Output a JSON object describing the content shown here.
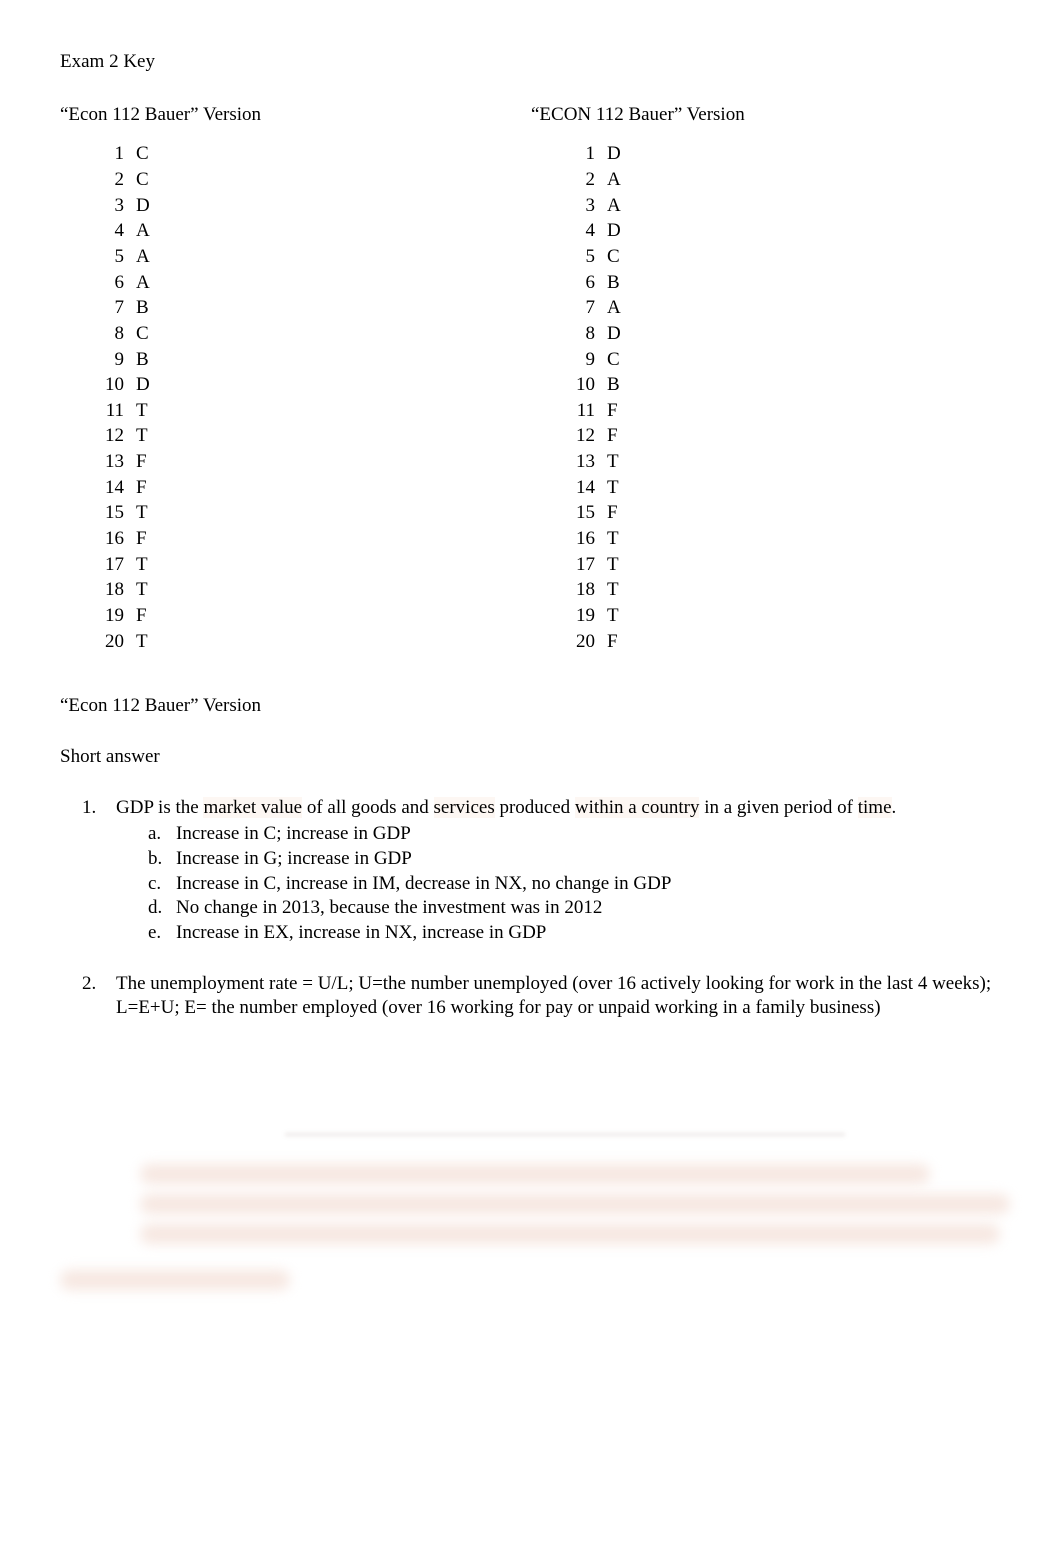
{
  "title": "Exam 2 Key",
  "versions": {
    "left_label": "“Econ 112 Bauer” Version",
    "right_label": "“ECON 112 Bauer” Version"
  },
  "answers_left": [
    {
      "n": "1",
      "v": "C"
    },
    {
      "n": "2",
      "v": "C"
    },
    {
      "n": "3",
      "v": "D"
    },
    {
      "n": "4",
      "v": "A"
    },
    {
      "n": "5",
      "v": "A"
    },
    {
      "n": "6",
      "v": "A"
    },
    {
      "n": "7",
      "v": "B"
    },
    {
      "n": "8",
      "v": "C"
    },
    {
      "n": "9",
      "v": "B"
    },
    {
      "n": "10",
      "v": "D"
    },
    {
      "n": "11",
      "v": "T"
    },
    {
      "n": "12",
      "v": "T"
    },
    {
      "n": "13",
      "v": "F"
    },
    {
      "n": "14",
      "v": "F"
    },
    {
      "n": "15",
      "v": "T"
    },
    {
      "n": "16",
      "v": "F"
    },
    {
      "n": "17",
      "v": "T"
    },
    {
      "n": "18",
      "v": "T"
    },
    {
      "n": "19",
      "v": "F"
    },
    {
      "n": "20",
      "v": "T"
    }
  ],
  "answers_right": [
    {
      "n": "1",
      "v": "D"
    },
    {
      "n": "2",
      "v": "A"
    },
    {
      "n": "3",
      "v": "A"
    },
    {
      "n": "4",
      "v": "D"
    },
    {
      "n": "5",
      "v": "C"
    },
    {
      "n": "6",
      "v": "B"
    },
    {
      "n": "7",
      "v": "A"
    },
    {
      "n": "8",
      "v": "D"
    },
    {
      "n": "9",
      "v": "C"
    },
    {
      "n": "10",
      "v": "B"
    },
    {
      "n": "11",
      "v": "F"
    },
    {
      "n": "12",
      "v": "F"
    },
    {
      "n": "13",
      "v": "T"
    },
    {
      "n": "14",
      "v": "T"
    },
    {
      "n": "15",
      "v": "F"
    },
    {
      "n": "16",
      "v": "T"
    },
    {
      "n": "17",
      "v": "T"
    },
    {
      "n": "18",
      "v": "T"
    },
    {
      "n": "19",
      "v": "T"
    },
    {
      "n": "20",
      "v": "F"
    }
  ],
  "section_version_heading": "“Econ 112 Bauer” Version",
  "short_answer_heading": "Short answer",
  "short_answers": [
    {
      "num": "1.",
      "main_pre": "GDP is the ",
      "main_hl1": "market value",
      "main_mid1": " of all goods and ",
      "main_hl2": "services",
      "main_mid2": " produced ",
      "main_hl3": "within a country",
      "main_mid3": " in a given period of ",
      "main_hl4": "time",
      "main_post": ".",
      "subs": [
        {
          "l": "a.",
          "t": "Increase in C; increase in GDP"
        },
        {
          "l": "b.",
          "t": "Increase in G; increase in GDP"
        },
        {
          "l": "c.",
          "t": "Increase in C, increase in IM, decrease in NX, no change in GDP"
        },
        {
          "l": "d.",
          "t": "No change in 2013, because the investment was in 2012"
        },
        {
          "l": "e.",
          "t": "Increase in EX, increase in NX, increase in GDP"
        }
      ]
    },
    {
      "num": "2.",
      "main": "The unemployment rate = U/L; U=the number unemployed (over 16 actively looking for work in the last 4 weeks); L=E+U; E= the number employed (over 16 working for pay or unpaid working in a family business)",
      "subs": []
    }
  ],
  "colors": {
    "background": "#ffffff",
    "text": "#000000",
    "highlight_bg": "#fdf7f3",
    "blur_fill": "#f3ded5"
  },
  "typography": {
    "font_family": "Times New Roman",
    "font_size_pt": 14
  }
}
